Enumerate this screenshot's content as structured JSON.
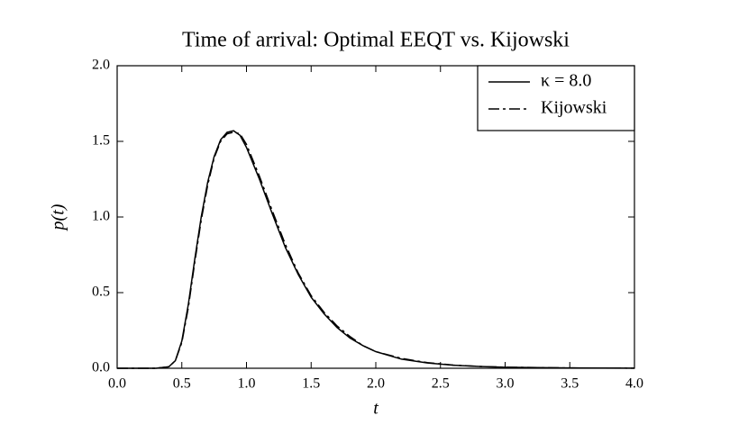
{
  "chart_data": {
    "type": "line",
    "title": "Time of arrival: Optimal EEQT vs. Kijowski",
    "xlabel": "t",
    "ylabel": "p(t)",
    "x": [
      0.0,
      0.3,
      0.4,
      0.45,
      0.5,
      0.55,
      0.6,
      0.65,
      0.7,
      0.75,
      0.8,
      0.85,
      0.9,
      0.95,
      1.0,
      1.1,
      1.2,
      1.3,
      1.4,
      1.5,
      1.6,
      1.7,
      1.8,
      1.9,
      2.0,
      2.2,
      2.4,
      2.6,
      2.8,
      3.0,
      3.5,
      4.0
    ],
    "series": [
      {
        "name": "κ = 8.0",
        "color": "#000000",
        "dash": "solid",
        "values": [
          0,
          0,
          0.01,
          0.05,
          0.18,
          0.42,
          0.72,
          1.0,
          1.23,
          1.4,
          1.51,
          1.56,
          1.57,
          1.54,
          1.46,
          1.25,
          1.02,
          0.8,
          0.62,
          0.47,
          0.36,
          0.27,
          0.2,
          0.15,
          0.11,
          0.06,
          0.035,
          0.02,
          0.012,
          0.007,
          0.002,
          0.001
        ]
      },
      {
        "name": "Kijowski",
        "color": "#000000",
        "dash": "dashdot",
        "values": [
          0,
          0,
          0.01,
          0.05,
          0.17,
          0.4,
          0.7,
          0.98,
          1.21,
          1.39,
          1.5,
          1.55,
          1.56,
          1.55,
          1.48,
          1.27,
          1.04,
          0.82,
          0.63,
          0.48,
          0.37,
          0.28,
          0.21,
          0.15,
          0.11,
          0.065,
          0.037,
          0.021,
          0.012,
          0.007,
          0.002,
          0.001
        ]
      }
    ],
    "xlim": [
      0,
      4
    ],
    "ylim": [
      0,
      2
    ],
    "xticks": [
      {
        "value": 0,
        "label": "0.0"
      },
      0.5,
      {
        "value": 1,
        "label": "1.0"
      },
      1.5,
      {
        "value": 2,
        "label": "2.0"
      },
      2.5,
      {
        "value": 3,
        "label": "3.0"
      },
      3.5,
      {
        "value": 4,
        "label": "4.0"
      }
    ],
    "yticks": [
      {
        "value": 0,
        "label": "0.0"
      },
      0.5,
      {
        "value": 1,
        "label": "1.0"
      },
      1.5,
      {
        "value": 2,
        "label": "2.0"
      }
    ],
    "legend": "upper right",
    "grid": false
  }
}
